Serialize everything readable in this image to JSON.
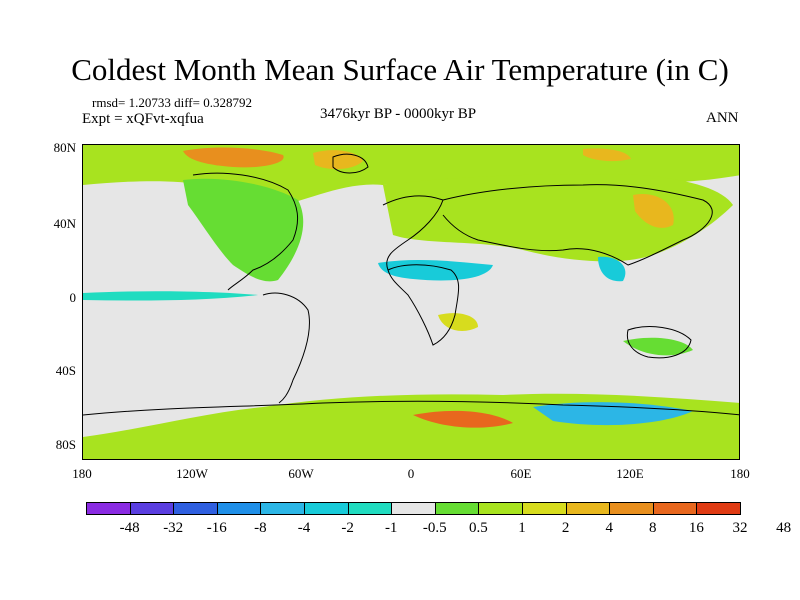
{
  "title": "Coldest Month Mean Surface Air Temperature (in C)",
  "stats": "rmsd= 1.20733 diff= 0.328792",
  "experiment": "Expt = xQFvt-xqfua",
  "period": "3476kyr BP - 0000kyr BP",
  "season": "ANN",
  "axes": {
    "y_labels": [
      "80N",
      "40N",
      "0",
      "40S",
      "80S"
    ],
    "x_labels": [
      "180",
      "120W",
      "60W",
      "0",
      "60E",
      "120E",
      "180"
    ]
  },
  "colorbar": {
    "colors": [
      "#8a2be2",
      "#5a3ee0",
      "#2f5fe0",
      "#1f8fe8",
      "#2cb6e6",
      "#18cbd9",
      "#20dcc0",
      "#e6e6e6",
      "#66dd33",
      "#a8e31f",
      "#d7dc1e",
      "#e8b71e",
      "#e88f1e",
      "#e8671e",
      "#e03b13"
    ],
    "labels": [
      "-48",
      "-32",
      "-16",
      "-8",
      "-4",
      "-2",
      "-1",
      "-0.5",
      "0.5",
      "1",
      "2",
      "4",
      "8",
      "16",
      "32",
      "48"
    ]
  }
}
